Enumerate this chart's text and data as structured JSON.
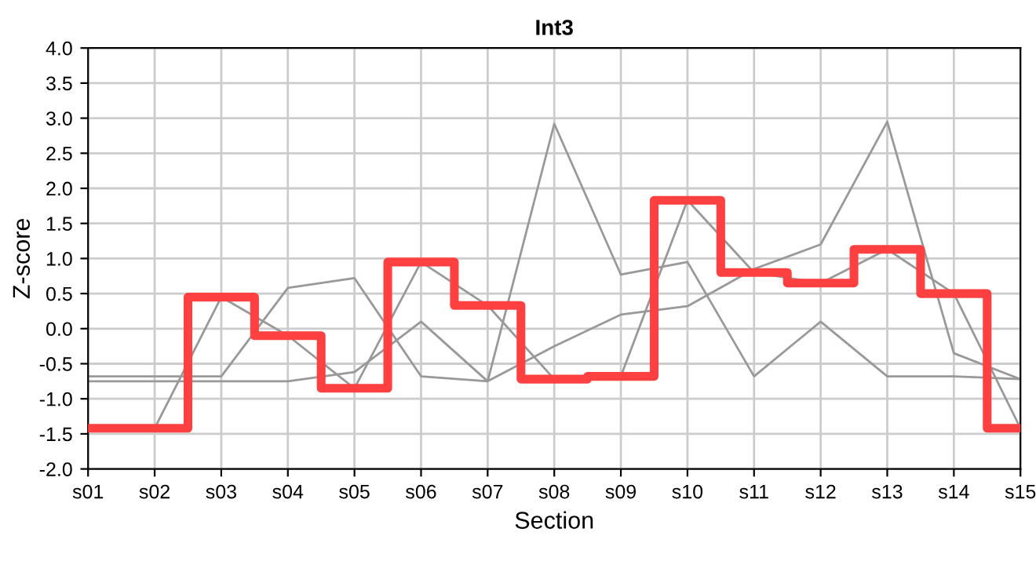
{
  "chart_data": {
    "type": "line",
    "title": "Int3",
    "xlabel": "Section",
    "ylabel": "Z-score",
    "categories": [
      "s01",
      "s02",
      "s03",
      "s04",
      "s05",
      "s06",
      "s07",
      "s08",
      "s09",
      "s10",
      "s11",
      "s12",
      "s13",
      "s14",
      "s15"
    ],
    "series": [
      {
        "color": "#999999",
        "values": [
          -0.68,
          -0.68,
          -0.68,
          0.58,
          0.72,
          -0.68,
          -0.75,
          2.92,
          0.77,
          0.95,
          -0.68,
          0.1,
          -0.68,
          -0.68,
          -0.72
        ]
      },
      {
        "color": "#999999",
        "values": [
          -0.75,
          -0.75,
          -0.75,
          -0.75,
          -0.62,
          0.1,
          -0.75,
          -0.25,
          0.2,
          0.32,
          0.85,
          1.2,
          2.95,
          -0.35,
          -0.72
        ]
      },
      {
        "color": "#999999",
        "values": [
          -1.42,
          -1.42,
          0.45,
          -0.1,
          -0.85,
          0.95,
          0.33,
          -0.72,
          -0.68,
          1.83,
          0.8,
          0.65,
          1.13,
          0.5,
          -1.42
        ]
      },
      {
        "type": "step",
        "color": "#ff4040",
        "values": [
          -1.42,
          -1.42,
          0.45,
          -0.1,
          -0.85,
          0.95,
          0.33,
          -0.72,
          -0.68,
          1.83,
          0.8,
          0.65,
          1.13,
          0.5,
          -1.42
        ]
      }
    ],
    "ylim": [
      -2,
      4
    ],
    "yticks": [
      {
        "value": -2,
        "label": "-2.0"
      },
      {
        "value": -1.5,
        "label": "-1.5"
      },
      {
        "value": -1,
        "label": "-1.0"
      },
      {
        "value": -0.5,
        "label": "-0.5"
      },
      {
        "value": 0,
        "label": "0.0"
      },
      {
        "value": 0.5,
        "label": "0.5"
      },
      {
        "value": 1,
        "label": "1.0"
      },
      {
        "value": 1.5,
        "label": "1.5"
      },
      {
        "value": 2,
        "label": "2.0"
      },
      {
        "value": 2.5,
        "label": "2.5"
      },
      {
        "value": 3,
        "label": "3.0"
      },
      {
        "value": 3.5,
        "label": "3.5"
      },
      {
        "value": 4,
        "label": "4.0"
      }
    ],
    "grid": true
  }
}
